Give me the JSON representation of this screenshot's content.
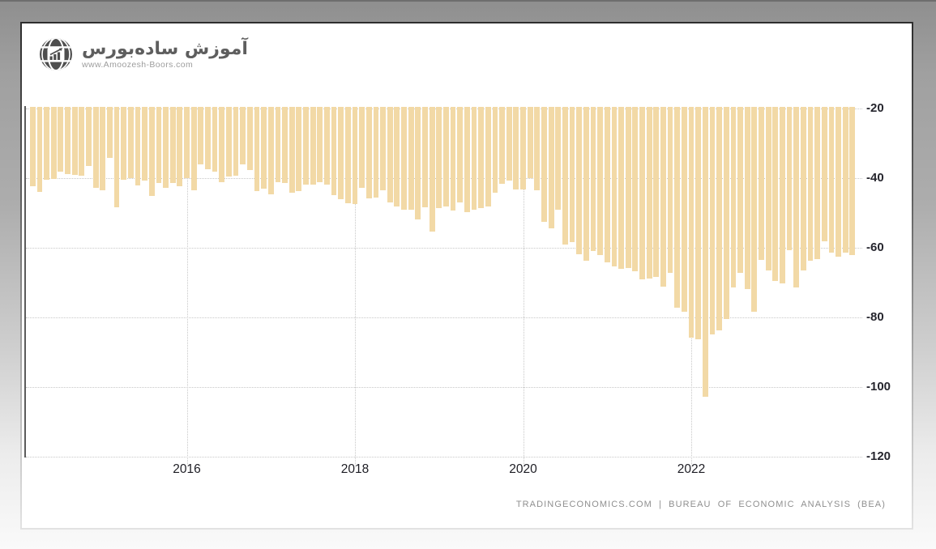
{
  "logo": {
    "title": "آموزش ساده‌بورس",
    "website": "www.Amoozesh-Boors.com",
    "icon": "globe-chart-icon"
  },
  "footer": {
    "attribution": "TRADINGECONOMICS.COM | BUREAU OF ECONOMIC ANALYSIS (BEA)"
  },
  "chart_data": {
    "type": "bar",
    "title": "",
    "xlabel": "",
    "ylabel": "",
    "frequency": "monthly",
    "x": [
      "2014-03",
      "2014-04",
      "2014-05",
      "2014-06",
      "2014-07",
      "2014-08",
      "2014-09",
      "2014-10",
      "2014-11",
      "2014-12",
      "2015-01",
      "2015-02",
      "2015-03",
      "2015-04",
      "2015-05",
      "2015-06",
      "2015-07",
      "2015-08",
      "2015-09",
      "2015-10",
      "2015-11",
      "2015-12",
      "2016-01",
      "2016-02",
      "2016-03",
      "2016-04",
      "2016-05",
      "2016-06",
      "2016-07",
      "2016-08",
      "2016-09",
      "2016-10",
      "2016-11",
      "2016-12",
      "2017-01",
      "2017-02",
      "2017-03",
      "2017-04",
      "2017-05",
      "2017-06",
      "2017-07",
      "2017-08",
      "2017-09",
      "2017-10",
      "2017-11",
      "2017-12",
      "2018-01",
      "2018-02",
      "2018-03",
      "2018-04",
      "2018-05",
      "2018-06",
      "2018-07",
      "2018-08",
      "2018-09",
      "2018-10",
      "2018-11",
      "2018-12",
      "2019-01",
      "2019-02",
      "2019-03",
      "2019-04",
      "2019-05",
      "2019-06",
      "2019-07",
      "2019-08",
      "2019-09",
      "2019-10",
      "2019-11",
      "2019-12",
      "2020-01",
      "2020-02",
      "2020-03",
      "2020-04",
      "2020-05",
      "2020-06",
      "2020-07",
      "2020-08",
      "2020-09",
      "2020-10",
      "2020-11",
      "2020-12",
      "2021-01",
      "2021-02",
      "2021-03",
      "2021-04",
      "2021-05",
      "2021-06",
      "2021-07",
      "2021-08",
      "2021-09",
      "2021-10",
      "2021-11",
      "2021-12",
      "2022-01",
      "2022-02",
      "2022-03",
      "2022-04",
      "2022-05",
      "2022-06",
      "2022-07",
      "2022-08",
      "2022-09",
      "2022-10",
      "2022-11",
      "2022-12",
      "2023-01",
      "2023-02",
      "2023-03",
      "2023-04",
      "2023-05",
      "2023-06",
      "2023-07",
      "2023-08",
      "2023-09",
      "2023-10",
      "2023-11",
      "2023-12"
    ],
    "values": [
      -42.4,
      -44.0,
      -40.5,
      -40.2,
      -38.2,
      -38.9,
      -39.0,
      -39.4,
      -36.5,
      -42.7,
      -43.4,
      -34.2,
      -48.3,
      -40.5,
      -40.1,
      -42.2,
      -40.6,
      -45.2,
      -41.3,
      -42.7,
      -41.3,
      -42.4,
      -39.9,
      -43.5,
      -36.1,
      -37.4,
      -38.2,
      -41.1,
      -39.6,
      -39.4,
      -36.1,
      -37.6,
      -43.8,
      -43.0,
      -44.6,
      -41.1,
      -41.5,
      -44.2,
      -43.8,
      -41.9,
      -41.9,
      -41.1,
      -41.9,
      -44.9,
      -46.1,
      -47.3,
      -47.5,
      -42.8,
      -45.9,
      -45.5,
      -43.6,
      -47.0,
      -48.2,
      -49.0,
      -49.0,
      -51.9,
      -48.4,
      -55.4,
      -48.6,
      -48.2,
      -49.2,
      -47.0,
      -49.8,
      -49.0,
      -48.6,
      -48.2,
      -44.3,
      -41.6,
      -40.8,
      -43.2,
      -43.2,
      -40.1,
      -43.6,
      -52.5,
      -54.4,
      -49.0,
      -59.1,
      -58.3,
      -61.8,
      -63.7,
      -61.0,
      -62.2,
      -64.3,
      -65.4,
      -66.0,
      -65.7,
      -66.8,
      -69.1,
      -68.8,
      -68.4,
      -71.2,
      -67.2,
      -77.3,
      -78.4,
      -85.8,
      -86.3,
      -102.9,
      -84.9,
      -83.7,
      -80.5,
      -71.5,
      -67.2,
      -71.9,
      -78.4,
      -63.4,
      -66.5,
      -69.5,
      -70.3,
      -60.6,
      -71.5,
      -66.4,
      -63.7,
      -63.3,
      -58.1,
      -61.4,
      -62.6,
      -61.4,
      -62.0
    ],
    "y_ticks": [
      "-20",
      "-40",
      "-60",
      "-80",
      "-100",
      "-120"
    ],
    "x_ticks": [
      {
        "label": "2016",
        "month": "2016-01"
      },
      {
        "label": "2018",
        "month": "2018-01"
      },
      {
        "label": "2020",
        "month": "2020-01"
      },
      {
        "label": "2022",
        "month": "2022-01"
      }
    ],
    "ylim": [
      -120,
      -20
    ],
    "bar_color": "#f2d9a6",
    "grid": "dotted",
    "y_axis_side": "right",
    "legend": "none"
  }
}
